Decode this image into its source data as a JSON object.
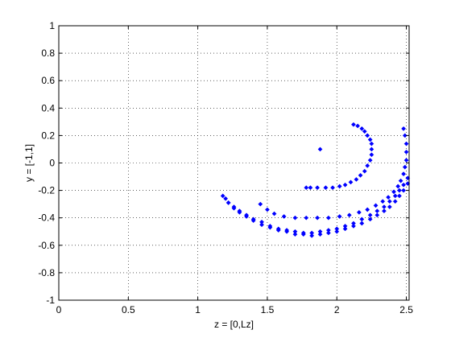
{
  "chart_data": {
    "type": "scatter",
    "title": "",
    "xlabel": "z = [0,Lz]",
    "ylabel": "y = [-1,1]",
    "xlim": [
      0,
      2.52
    ],
    "ylim": [
      -1,
      1
    ],
    "x_ticks": [
      0,
      0.5,
      1,
      1.5,
      2,
      2.5
    ],
    "x_tick_labels": [
      "0",
      "0.5",
      "1",
      "1.5",
      "2",
      "2.5"
    ],
    "y_ticks": [
      1,
      0.8,
      0.6,
      0.4,
      0.2,
      0,
      -0.2,
      -0.4,
      -0.6,
      -0.8,
      -1
    ],
    "y_tick_labels": [
      "1",
      "0.8",
      "0.6",
      "0.4",
      "0.2",
      "0",
      "-0.2",
      "-0.4",
      "-0.6",
      "-0.8",
      "-1"
    ],
    "grid": true,
    "grid_style": "dotted",
    "marker": "diamond",
    "marker_color": "#0000ff",
    "series": [
      {
        "x": [
          2.12,
          2.15,
          2.18,
          2.2,
          2.22,
          2.24,
          2.25,
          2.25,
          2.25,
          2.24,
          2.22,
          2.2,
          2.17,
          2.14,
          2.1,
          2.06,
          2.02,
          1.97,
          1.92,
          1.86,
          1.81,
          1.78
        ],
        "y": [
          0.28,
          0.27,
          0.25,
          0.23,
          0.2,
          0.17,
          0.14,
          0.1,
          0.06,
          0.02,
          -0.02,
          -0.06,
          -0.09,
          -0.12,
          -0.14,
          -0.16,
          -0.17,
          -0.18,
          -0.18,
          -0.18,
          -0.18,
          -0.18
        ]
      },
      {
        "x": [
          1.88
        ],
        "y": [
          0.1
        ]
      },
      {
        "x": [
          2.48,
          2.49,
          2.5,
          2.5,
          2.5,
          2.49,
          2.48,
          2.46,
          2.44,
          2.41,
          2.37,
          2.33,
          2.28,
          2.22,
          2.16,
          2.09,
          2.02,
          1.94,
          1.86,
          1.78,
          1.7,
          1.62,
          1.55,
          1.5,
          1.45
        ],
        "y": [
          0.25,
          0.2,
          0.14,
          0.08,
          0.02,
          -0.03,
          -0.08,
          -0.13,
          -0.17,
          -0.21,
          -0.25,
          -0.28,
          -0.31,
          -0.34,
          -0.36,
          -0.38,
          -0.39,
          -0.4,
          -0.4,
          -0.4,
          -0.4,
          -0.39,
          -0.37,
          -0.34,
          -0.3
        ]
      },
      {
        "x": [
          2.51,
          2.48,
          2.45,
          2.42,
          2.38,
          2.34,
          2.29,
          2.24,
          2.18,
          2.12,
          2.06,
          2.0,
          1.94,
          1.88,
          1.82,
          1.76,
          1.7,
          1.64,
          1.58,
          1.52,
          1.46,
          1.4,
          1.35,
          1.3,
          1.26,
          1.22,
          1.2
        ],
        "y": [
          -0.11,
          -0.16,
          -0.2,
          -0.24,
          -0.28,
          -0.32,
          -0.35,
          -0.38,
          -0.41,
          -0.44,
          -0.46,
          -0.48,
          -0.49,
          -0.5,
          -0.51,
          -0.51,
          -0.5,
          -0.49,
          -0.48,
          -0.46,
          -0.43,
          -0.41,
          -0.38,
          -0.35,
          -0.32,
          -0.29,
          -0.26
        ]
      },
      {
        "x": [
          2.51,
          2.48,
          2.45,
          2.42,
          2.38,
          2.34,
          2.29,
          2.24,
          2.18,
          2.12,
          2.06,
          2.0,
          1.94,
          1.88,
          1.82,
          1.76,
          1.7,
          1.64,
          1.58,
          1.52,
          1.46,
          1.4,
          1.35,
          1.3,
          1.26,
          1.22,
          1.18
        ],
        "y": [
          -0.15,
          -0.2,
          -0.24,
          -0.28,
          -0.32,
          -0.35,
          -0.38,
          -0.41,
          -0.44,
          -0.46,
          -0.48,
          -0.5,
          -0.51,
          -0.52,
          -0.53,
          -0.52,
          -0.52,
          -0.5,
          -0.49,
          -0.47,
          -0.45,
          -0.42,
          -0.39,
          -0.36,
          -0.33,
          -0.29,
          -0.24
        ]
      }
    ]
  }
}
